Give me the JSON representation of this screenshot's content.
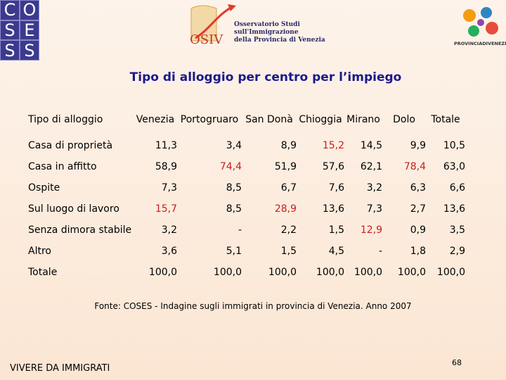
{
  "logos": {
    "coses_letters": [
      "C",
      "O",
      "S",
      "E",
      "S",
      "S"
    ],
    "osiv_mark": "OSIV",
    "osiv_lines": [
      "Osservatorio Studi",
      "sull'Immigrazione",
      "della Provincia di Venezia"
    ],
    "province_label": "PROVINCIADIVENEZIA"
  },
  "title": "Tipo di alloggio per centro per l’impiego",
  "table": {
    "headers": [
      "Tipo di alloggio",
      "Venezia",
      "Portogruaro",
      "San Donà",
      "Chioggia",
      "Mirano",
      "Dolo",
      "Totale"
    ],
    "rows": [
      {
        "label": "Casa di proprietà",
        "cells": [
          {
            "v": "11,3",
            "hl": false
          },
          {
            "v": "3,4",
            "hl": false
          },
          {
            "v": "8,9",
            "hl": false
          },
          {
            "v": "15,2",
            "hl": true
          },
          {
            "v": "14,5",
            "hl": false
          },
          {
            "v": "9,9",
            "hl": false
          },
          {
            "v": "10,5",
            "hl": false
          }
        ]
      },
      {
        "label": "Casa in affitto",
        "cells": [
          {
            "v": "58,9",
            "hl": false
          },
          {
            "v": "74,4",
            "hl": true
          },
          {
            "v": "51,9",
            "hl": false
          },
          {
            "v": "57,6",
            "hl": false
          },
          {
            "v": "62,1",
            "hl": false
          },
          {
            "v": "78,4",
            "hl": true
          },
          {
            "v": "63,0",
            "hl": false
          }
        ]
      },
      {
        "label": "Ospite",
        "cells": [
          {
            "v": "7,3",
            "hl": false
          },
          {
            "v": "8,5",
            "hl": false
          },
          {
            "v": "6,7",
            "hl": false
          },
          {
            "v": "7,6",
            "hl": false
          },
          {
            "v": "3,2",
            "hl": false
          },
          {
            "v": "6,3",
            "hl": false
          },
          {
            "v": "6,6",
            "hl": false
          }
        ]
      },
      {
        "label": "Sul luogo di lavoro",
        "cells": [
          {
            "v": "15,7",
            "hl": true
          },
          {
            "v": "8,5",
            "hl": false
          },
          {
            "v": "28,9",
            "hl": true
          },
          {
            "v": "13,6",
            "hl": false
          },
          {
            "v": "7,3",
            "hl": false
          },
          {
            "v": "2,7",
            "hl": false
          },
          {
            "v": "13,6",
            "hl": false
          }
        ]
      },
      {
        "label": "Senza dimora stabile",
        "cells": [
          {
            "v": "3,2",
            "hl": false
          },
          {
            "v": "-",
            "hl": false
          },
          {
            "v": "2,2",
            "hl": false
          },
          {
            "v": "1,5",
            "hl": false
          },
          {
            "v": "12,9",
            "hl": true
          },
          {
            "v": "0,9",
            "hl": false
          },
          {
            "v": "3,5",
            "hl": false
          }
        ]
      },
      {
        "label": "Altro",
        "cells": [
          {
            "v": "3,6",
            "hl": false
          },
          {
            "v": "5,1",
            "hl": false
          },
          {
            "v": "1,5",
            "hl": false
          },
          {
            "v": "4,5",
            "hl": false
          },
          {
            "v": "-",
            "hl": false
          },
          {
            "v": "1,8",
            "hl": false
          },
          {
            "v": "2,9",
            "hl": false
          }
        ]
      },
      {
        "label": "Totale",
        "cells": [
          {
            "v": "100,0",
            "hl": false
          },
          {
            "v": "100,0",
            "hl": false
          },
          {
            "v": "100,0",
            "hl": false
          },
          {
            "v": "100,0",
            "hl": false
          },
          {
            "v": "100,0",
            "hl": false
          },
          {
            "v": "100,0",
            "hl": false
          },
          {
            "v": "100,0",
            "hl": false
          }
        ]
      }
    ]
  },
  "source": "Fonte: COSES - Indagine sugli immigrati in provincia di Venezia. Anno 2007",
  "footer": "VIVERE DA IMMIGRATI",
  "page_number": "68",
  "colors": {
    "title": "#1a1a8c",
    "highlight": "#c81e1e",
    "coses_bg": "#3c3a8e"
  }
}
